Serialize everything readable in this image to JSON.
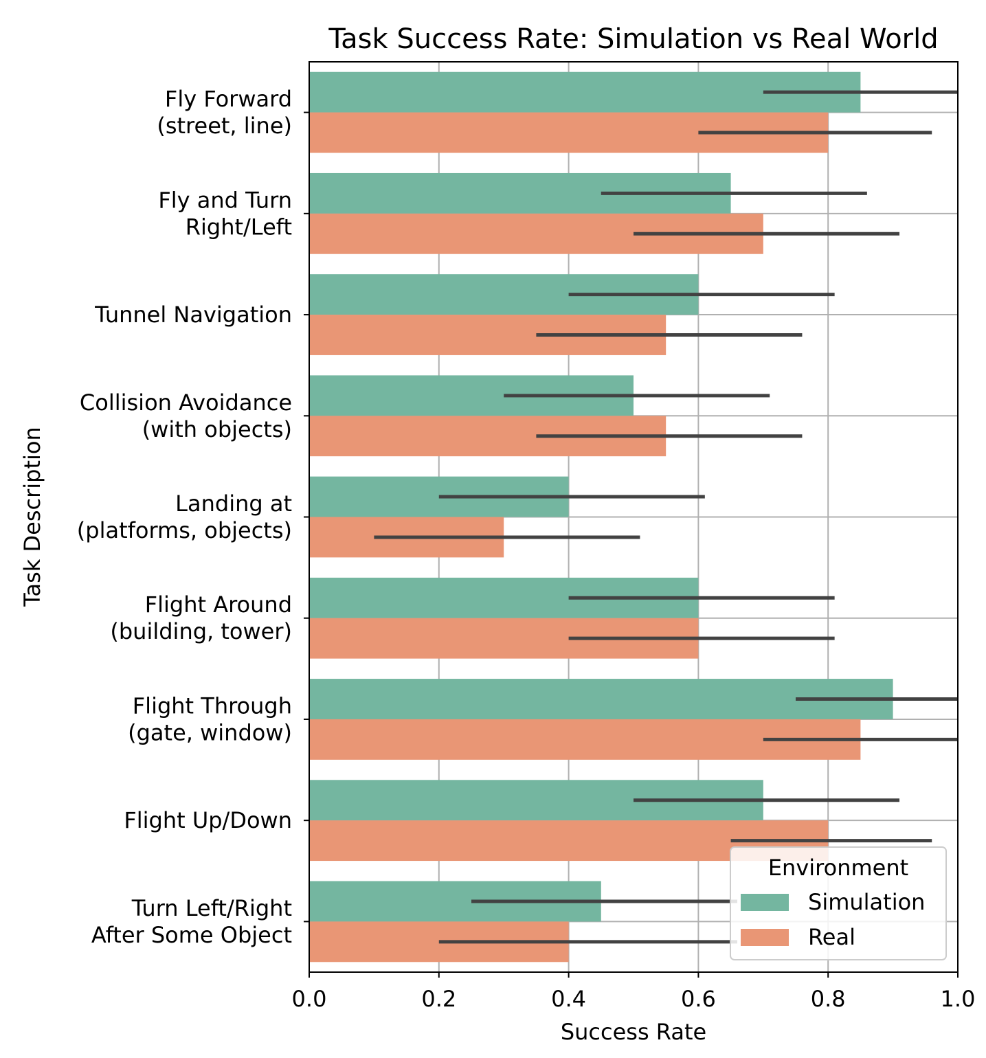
{
  "chart_data": {
    "type": "bar",
    "orientation": "horizontal",
    "title": "Task Success Rate: Simulation vs Real World",
    "xlabel": "Success Rate",
    "ylabel": "Task Description",
    "xlim": [
      0,
      1
    ],
    "xticks": [
      "0.0",
      "0.2",
      "0.4",
      "0.6",
      "0.8",
      "1.0"
    ],
    "grid": true,
    "legend": {
      "title": "Environment",
      "position": "bottom-right"
    },
    "categories": [
      [
        "Fly Forward",
        "(street, line)"
      ],
      [
        "Fly and Turn",
        "Right/Left"
      ],
      [
        "Tunnel Navigation"
      ],
      [
        "Collision Avoidance",
        "(with objects)"
      ],
      [
        "Landing at",
        "(platforms, objects)"
      ],
      [
        "Flight Around",
        "(building, tower)"
      ],
      [
        "Flight Through",
        "(gate, window)"
      ],
      [
        "Flight Up/Down"
      ],
      [
        "Turn Left/Right",
        "After Some Object"
      ]
    ],
    "series": [
      {
        "name": "Simulation",
        "color": "#74b6a0",
        "values": [
          0.85,
          0.65,
          0.6,
          0.5,
          0.4,
          0.6,
          0.9,
          0.7,
          0.45
        ],
        "ci": [
          [
            0.7,
            1.0
          ],
          [
            0.45,
            0.86
          ],
          [
            0.4,
            0.81
          ],
          [
            0.3,
            0.71
          ],
          [
            0.2,
            0.61
          ],
          [
            0.4,
            0.81
          ],
          [
            0.75,
            1.0
          ],
          [
            0.5,
            0.91
          ],
          [
            0.25,
            0.66
          ]
        ]
      },
      {
        "name": "Real",
        "color": "#e99675",
        "values": [
          0.8,
          0.7,
          0.55,
          0.55,
          0.3,
          0.6,
          0.85,
          0.8,
          0.4
        ],
        "ci": [
          [
            0.6,
            0.96
          ],
          [
            0.5,
            0.91
          ],
          [
            0.35,
            0.76
          ],
          [
            0.35,
            0.76
          ],
          [
            0.1,
            0.51
          ],
          [
            0.4,
            0.81
          ],
          [
            0.7,
            1.0
          ],
          [
            0.65,
            0.96
          ],
          [
            0.2,
            0.66
          ]
        ]
      }
    ]
  }
}
